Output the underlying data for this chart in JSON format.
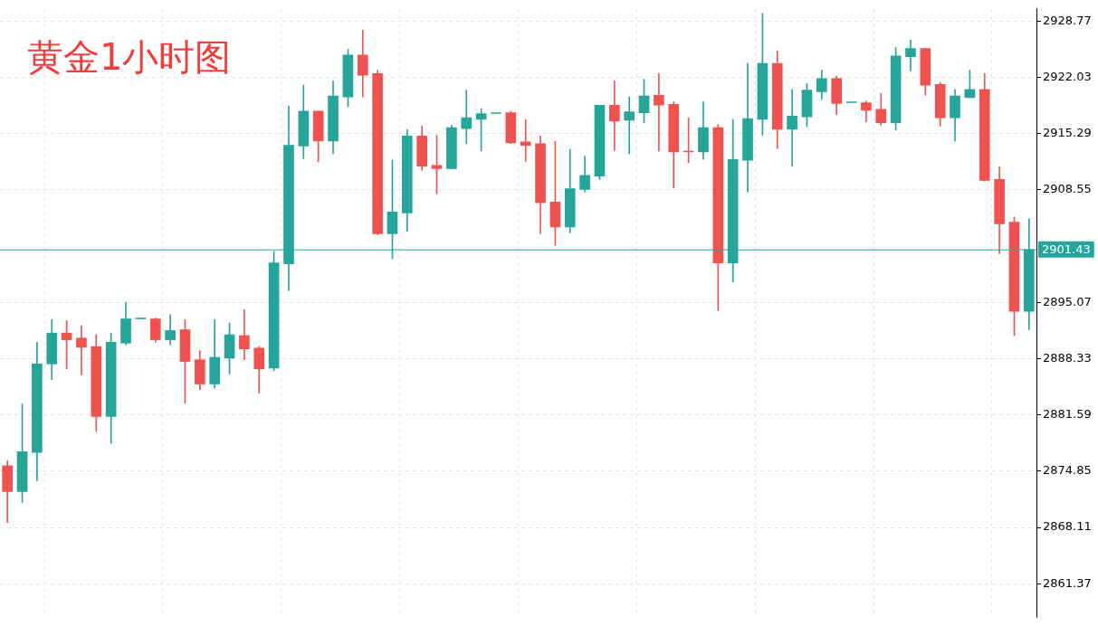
{
  "chart_data": {
    "type": "candlestick",
    "title": "黄金1小时图",
    "categories": [
      null,
      null,
      null,
      null,
      null,
      null,
      null,
      null,
      null,
      null,
      null,
      null,
      null,
      null,
      null,
      null,
      null,
      null,
      null,
      null,
      null,
      null,
      null,
      null,
      null,
      null,
      null,
      null,
      null,
      null,
      null,
      null,
      null,
      null,
      null,
      null,
      null,
      null,
      null,
      null,
      null,
      null,
      null,
      null,
      null,
      null,
      null,
      null,
      null,
      null,
      null,
      null,
      null,
      null,
      null,
      null,
      null,
      null,
      null,
      null,
      null,
      null,
      null,
      null,
      null,
      null,
      null,
      null,
      null,
      null
    ],
    "ohlc": [
      [
        2875.5,
        2876.1,
        2868.7,
        2872.4
      ],
      [
        2872.4,
        2882.9,
        2871.1,
        2877.2
      ],
      [
        2877.1,
        2890.3,
        2873.7,
        2887.7
      ],
      [
        2887.7,
        2893.0,
        2885.8,
        2891.4
      ],
      [
        2891.4,
        2892.9,
        2887.1,
        2890.6
      ],
      [
        2890.8,
        2892.3,
        2886.4,
        2889.7
      ],
      [
        2889.8,
        2891.2,
        2879.6,
        2881.4
      ],
      [
        2881.4,
        2891.4,
        2878.2,
        2890.3
      ],
      [
        2890.2,
        2895.1,
        2890.0,
        2893.1
      ],
      [
        2893.1,
        2893.1,
        2893.1,
        2893.1
      ],
      [
        2893.1,
        2893.2,
        2890.3,
        2890.6
      ],
      [
        2890.6,
        2893.6,
        2890.0,
        2891.7
      ],
      [
        2891.8,
        2893.0,
        2883.0,
        2888.0
      ],
      [
        2888.2,
        2889.3,
        2884.6,
        2885.3
      ],
      [
        2885.3,
        2893.0,
        2884.8,
        2888.5
      ],
      [
        2888.4,
        2892.6,
        2886.5,
        2891.2
      ],
      [
        2891.1,
        2894.2,
        2888.2,
        2889.5
      ],
      [
        2889.6,
        2889.8,
        2884.2,
        2887.1
      ],
      [
        2887.2,
        2901.2,
        2886.9,
        2899.8
      ],
      [
        2899.7,
        2918.6,
        2896.5,
        2913.9
      ],
      [
        2913.8,
        2921.1,
        2912.3,
        2918.0
      ],
      [
        2918.0,
        2918.0,
        2911.9,
        2914.4
      ],
      [
        2914.4,
        2921.6,
        2912.9,
        2919.8
      ],
      [
        2919.7,
        2925.4,
        2918.5,
        2924.7
      ],
      [
        2924.7,
        2927.7,
        2919.7,
        2922.3
      ],
      [
        2922.5,
        2922.9,
        2903.2,
        2903.3
      ],
      [
        2903.3,
        2912.1,
        2900.3,
        2905.9
      ],
      [
        2905.8,
        2915.8,
        2903.6,
        2915.0
      ],
      [
        2915.0,
        2916.2,
        2910.9,
        2911.4
      ],
      [
        2911.5,
        2915.1,
        2908.1,
        2911.1
      ],
      [
        2911.1,
        2916.3,
        2911.1,
        2916.0
      ],
      [
        2915.9,
        2920.5,
        2914.1,
        2917.2
      ],
      [
        2917.0,
        2918.3,
        2913.2,
        2917.7
      ],
      [
        2917.7,
        2917.7,
        2917.7,
        2917.7
      ],
      [
        2917.8,
        2918.0,
        2914.1,
        2914.2
      ],
      [
        2914.3,
        2917.0,
        2912.0,
        2913.9
      ],
      [
        2914.1,
        2915.0,
        2903.3,
        2907.0
      ],
      [
        2907.1,
        2914.4,
        2901.9,
        2904.1
      ],
      [
        2904.1,
        2913.4,
        2903.4,
        2908.7
      ],
      [
        2908.6,
        2912.6,
        2908.3,
        2910.3
      ],
      [
        2910.2,
        2918.7,
        2909.8,
        2918.7
      ],
      [
        2918.7,
        2921.6,
        2913.3,
        2916.8
      ],
      [
        2916.9,
        2919.7,
        2912.9,
        2917.9
      ],
      [
        2917.8,
        2921.8,
        2916.6,
        2919.8
      ],
      [
        2919.9,
        2922.5,
        2913.2,
        2918.7
      ],
      [
        2918.8,
        2919.1,
        2908.8,
        2913.1
      ],
      [
        2913.2,
        2917.2,
        2911.8,
        2913.1
      ],
      [
        2913.1,
        2919.1,
        2912.2,
        2916.0
      ],
      [
        2916.0,
        2916.4,
        2894.1,
        2899.8
      ],
      [
        2899.8,
        2917.0,
        2897.5,
        2912.2
      ],
      [
        2912.1,
        2923.7,
        2908.3,
        2917.1
      ],
      [
        2917.0,
        2929.7,
        2915.1,
        2923.7
      ],
      [
        2923.7,
        2925.2,
        2913.5,
        2915.8
      ],
      [
        2915.8,
        2920.6,
        2911.4,
        2917.4
      ],
      [
        2917.3,
        2921.3,
        2916.1,
        2920.5
      ],
      [
        2920.3,
        2922.9,
        2919.4,
        2921.9
      ],
      [
        2921.9,
        2922.2,
        2917.6,
        2918.9
      ],
      [
        2919.0,
        2919.0,
        2919.0,
        2919.0
      ],
      [
        2919.0,
        2919.2,
        2916.7,
        2918.1
      ],
      [
        2918.2,
        2920.1,
        2916.3,
        2916.6
      ],
      [
        2916.6,
        2925.6,
        2915.7,
        2924.6
      ],
      [
        2924.5,
        2926.5,
        2922.8,
        2925.5
      ],
      [
        2925.5,
        2925.5,
        2919.9,
        2921.1
      ],
      [
        2921.2,
        2921.4,
        2916.2,
        2917.2
      ],
      [
        2917.2,
        2920.6,
        2914.4,
        2919.8
      ],
      [
        2919.6,
        2922.9,
        2919.6,
        2920.6
      ],
      [
        2920.6,
        2922.5,
        2909.6,
        2909.7
      ],
      [
        2909.8,
        2911.3,
        2900.9,
        2904.5
      ],
      [
        2904.7,
        2905.3,
        2891.1,
        2894.0
      ],
      [
        2894.0,
        2905.1,
        2891.8,
        2901.4
      ]
    ],
    "colors": [
      "#ef5350",
      "#26a69a",
      "#26a69a",
      "#26a69a",
      "#ef5350",
      "#ef5350",
      "#ef5350",
      "#26a69a",
      "#26a69a",
      "#26a69a",
      "#ef5350",
      "#26a69a",
      "#ef5350",
      "#ef5350",
      "#26a69a",
      "#26a69a",
      "#ef5350",
      "#ef5350",
      "#26a69a",
      "#26a69a",
      "#26a69a",
      "#ef5350",
      "#26a69a",
      "#26a69a",
      "#ef5350",
      "#ef5350",
      "#26a69a",
      "#26a69a",
      "#ef5350",
      "#ef5350",
      "#26a69a",
      "#26a69a",
      "#26a69a",
      "#26a69a",
      "#ef5350",
      "#ef5350",
      "#ef5350",
      "#ef5350",
      "#26a69a",
      "#26a69a",
      "#26a69a",
      "#ef5350",
      "#26a69a",
      "#26a69a",
      "#ef5350",
      "#ef5350",
      "#ef5350",
      "#26a69a",
      "#ef5350",
      "#26a69a",
      "#26a69a",
      "#26a69a",
      "#ef5350",
      "#26a69a",
      "#26a69a",
      "#26a69a",
      "#ef5350",
      "#26a69a",
      "#ef5350",
      "#ef5350",
      "#26a69a",
      "#26a69a",
      "#ef5350",
      "#ef5350",
      "#26a69a",
      "#26a69a",
      "#ef5350",
      "#ef5350",
      "#ef5350",
      "#26a69a"
    ],
    "ylim": [
      2857.37,
      2930.24
    ],
    "yticks": [
      2861.37,
      2868.11,
      2874.85,
      2881.59,
      2888.33,
      2895.07,
      2908.55,
      2915.29,
      2922.03,
      2928.77
    ],
    "grid": true,
    "ref_lines": [
      {
        "axis": "y",
        "value": 2901.43,
        "label": "2901.43",
        "color": "#26a69a"
      }
    ]
  }
}
